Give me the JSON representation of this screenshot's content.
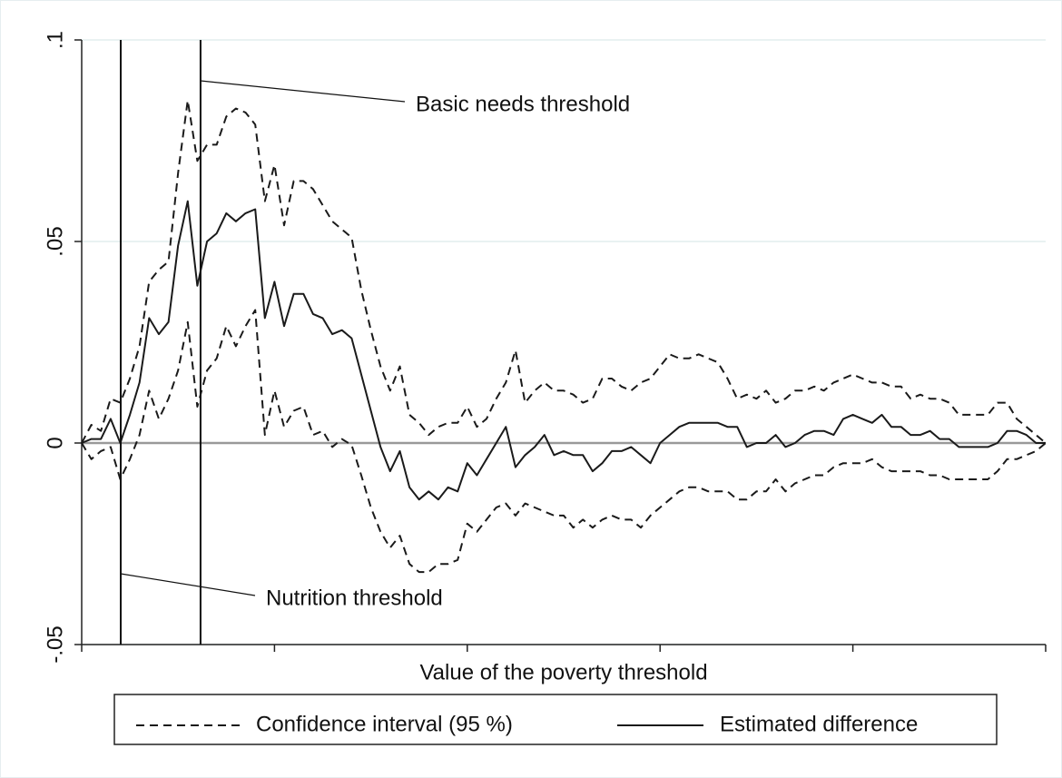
{
  "chart_data": {
    "type": "line",
    "xlabel": "Value of the poverty threshold",
    "x": [
      0,
      1,
      2,
      3,
      4,
      5,
      6,
      7,
      8,
      9,
      10,
      11,
      12,
      13,
      14,
      15,
      16,
      17,
      18,
      19,
      20,
      21,
      22,
      23,
      24,
      25,
      26,
      27,
      28,
      29,
      30,
      31,
      32,
      33,
      34,
      35,
      36,
      37,
      38,
      39,
      40,
      41,
      42,
      43,
      44,
      45,
      46,
      47,
      48,
      49,
      50,
      51,
      52,
      53,
      54,
      55,
      56,
      57,
      58,
      59,
      60,
      61,
      62,
      63,
      64,
      65,
      66,
      67,
      68,
      69,
      70,
      71,
      72,
      73,
      74,
      75,
      76,
      77,
      78,
      79,
      80,
      81,
      82,
      83,
      84,
      85,
      86,
      87,
      88,
      89,
      90,
      91,
      92,
      93,
      94,
      95,
      96,
      97,
      98,
      99,
      100
    ],
    "xlim": [
      0,
      100
    ],
    "xticks": [
      0,
      20,
      40,
      60,
      80,
      100
    ],
    "ylim": [
      -0.05,
      0.1
    ],
    "yticks": [
      {
        "value": -0.05,
        "label": "-.05"
      },
      0,
      {
        "value": 0.05,
        "label": ".05"
      },
      {
        "value": 0.1,
        "label": ".1"
      }
    ],
    "grid": true,
    "zero_line": true,
    "series": [
      {
        "name": "Confidence interval (95 %)",
        "color": "#1a1a1a",
        "style": "dashed",
        "upper": [
          0,
          0.0045,
          0.003,
          0.011,
          0.01,
          0.016,
          0.024,
          0.04,
          0.043,
          0.045,
          0.067,
          0.085,
          0.07,
          0.074,
          0.074,
          0.081,
          0.083,
          0.082,
          0.079,
          0.06,
          0.069,
          0.054,
          0.065,
          0.065,
          0.063,
          0.059,
          0.055,
          0.053,
          0.051,
          0.038,
          0.028,
          0.019,
          0.013,
          0.019,
          0.007,
          0.005,
          0.002,
          0.004,
          0.005,
          0.005,
          0.009,
          0.004,
          0.006,
          0.011,
          0.015,
          0.023,
          0.01,
          0.013,
          0.015,
          0.013,
          0.013,
          0.012,
          0.01,
          0.011,
          0.016,
          0.016,
          0.014,
          0.013,
          0.015,
          0.016,
          0.019,
          0.022,
          0.021,
          0.021,
          0.022,
          0.021,
          0.02,
          0.016,
          0.011,
          0.012,
          0.011,
          0.013,
          0.01,
          0.011,
          0.013,
          0.013,
          0.014,
          0.013,
          0.015,
          0.016,
          0.017,
          0.016,
          0.015,
          0.015,
          0.014,
          0.014,
          0.011,
          0.012,
          0.011,
          0.011,
          0.01,
          0.007,
          0.007,
          0.007,
          0.007,
          0.01,
          0.01,
          0.006,
          0.004,
          0.002,
          0
        ],
        "lower": [
          0,
          -0.004,
          -0.002,
          -0.001,
          -0.009,
          -0.004,
          0.002,
          0.013,
          0.006,
          0.011,
          0.018,
          0.03,
          0.009,
          0.018,
          0.021,
          0.029,
          0.024,
          0.029,
          0.033,
          0.002,
          0.013,
          0.004,
          0.008,
          0.009,
          0.002,
          0.003,
          -0.001,
          0.001,
          -0.0005,
          -0.008,
          -0.016,
          -0.022,
          -0.026,
          -0.023,
          -0.03,
          -0.032,
          -0.032,
          -0.03,
          -0.03,
          -0.029,
          -0.02,
          -0.022,
          -0.019,
          -0.016,
          -0.015,
          -0.018,
          -0.015,
          -0.016,
          -0.017,
          -0.018,
          -0.018,
          -0.021,
          -0.019,
          -0.021,
          -0.019,
          -0.018,
          -0.019,
          -0.019,
          -0.021,
          -0.018,
          -0.016,
          -0.014,
          -0.012,
          -0.011,
          -0.011,
          -0.012,
          -0.012,
          -0.012,
          -0.014,
          -0.014,
          -0.012,
          -0.012,
          -0.009,
          -0.012,
          -0.01,
          -0.009,
          -0.008,
          -0.008,
          -0.006,
          -0.005,
          -0.005,
          -0.005,
          -0.004,
          -0.006,
          -0.007,
          -0.007,
          -0.007,
          -0.007,
          -0.008,
          -0.008,
          -0.009,
          -0.009,
          -0.009,
          -0.009,
          -0.009,
          -0.007,
          -0.004,
          -0.004,
          -0.003,
          -0.002,
          0
        ]
      },
      {
        "name": "Estimated difference",
        "color": "#1a1a1a",
        "style": "solid",
        "values": [
          0,
          0.001,
          0.001,
          0.006,
          0,
          0.007,
          0.015,
          0.031,
          0.027,
          0.03,
          0.049,
          0.06,
          0.039,
          0.05,
          0.052,
          0.057,
          0.055,
          0.057,
          0.058,
          0.031,
          0.04,
          0.029,
          0.037,
          0.037,
          0.032,
          0.031,
          0.027,
          0.028,
          0.026,
          0.017,
          0.008,
          -0.001,
          -0.007,
          -0.002,
          -0.011,
          -0.014,
          -0.012,
          -0.014,
          -0.011,
          -0.012,
          -0.005,
          -0.008,
          -0.004,
          0,
          0.004,
          -0.006,
          -0.003,
          -0.001,
          0.002,
          -0.003,
          -0.002,
          -0.003,
          -0.003,
          -0.007,
          -0.005,
          -0.002,
          -0.002,
          -0.001,
          -0.003,
          -0.005,
          0,
          0.002,
          0.004,
          0.005,
          0.005,
          0.005,
          0.005,
          0.004,
          0.004,
          -0.001,
          0,
          0,
          0.002,
          -0.001,
          0,
          0.002,
          0.003,
          0.003,
          0.002,
          0.006,
          0.007,
          0.006,
          0.005,
          0.007,
          0.004,
          0.004,
          0.002,
          0.002,
          0.003,
          0.001,
          0.001,
          -0.001,
          -0.001,
          -0.001,
          -0.001,
          0,
          0.003,
          0.003,
          0.002,
          0,
          0
        ]
      }
    ],
    "reference_lines": [
      {
        "x": 4.05,
        "label": "Nutrition threshold"
      },
      {
        "x": 12.33,
        "label": "Basic needs threshold"
      }
    ]
  }
}
